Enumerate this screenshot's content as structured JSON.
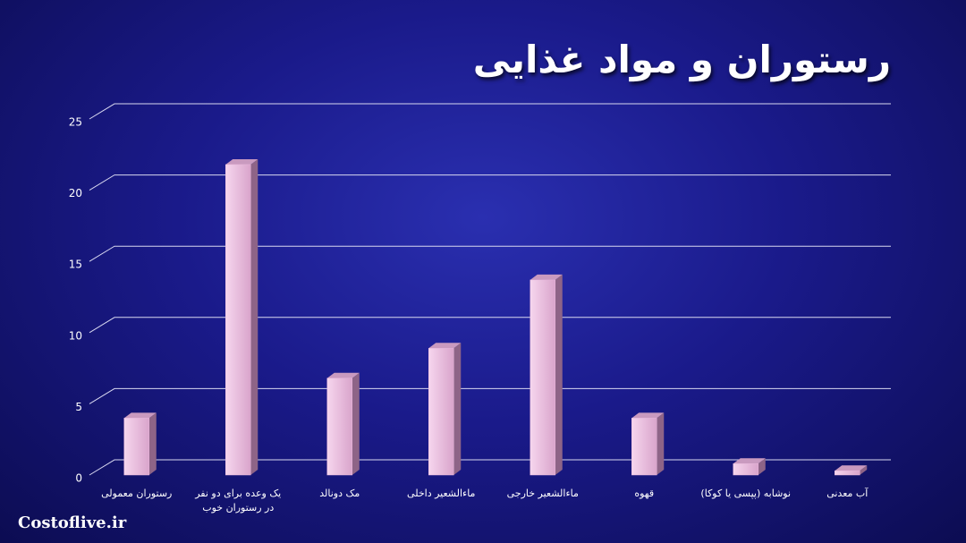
{
  "chart_data": {
    "type": "bar",
    "title": "رستوران و مواد غذایی",
    "footer": "Costoflive.ir",
    "categories": [
      "رستوران معمولی",
      "یک وعده برای دو نفر در رستوران خوب",
      "مک دونالد",
      "ماءالشعیر داخلی",
      "ماءالشعیر خارجی",
      "قهوه",
      "نوشابه (پپسی یا کوکا)",
      "آب معدنی"
    ],
    "values": [
      4,
      21.8,
      6.8,
      8.9,
      13.7,
      4,
      0.8,
      0.3
    ],
    "color": "#e8b8dc",
    "ylim": [
      0,
      25
    ],
    "yticks": [
      0,
      5,
      10,
      15,
      20,
      25
    ],
    "grid": true
  }
}
